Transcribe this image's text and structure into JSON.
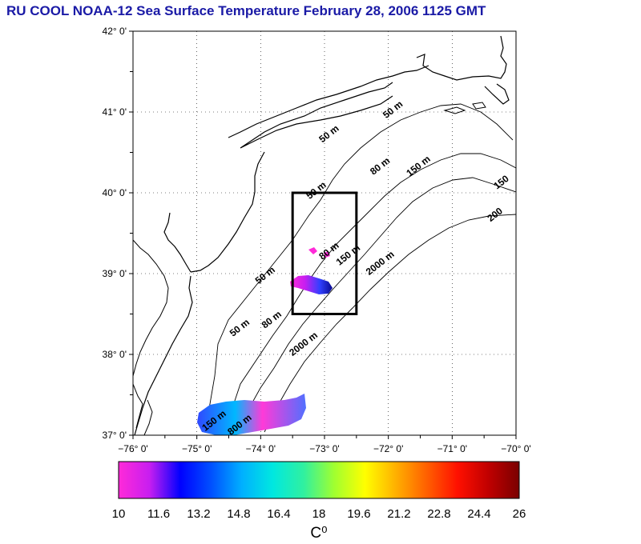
{
  "title": "RU COOL  NOAA-12 Sea Surface Temperature February 28, 2006 1125 GMT",
  "map": {
    "lon_range": [
      -76,
      -70
    ],
    "lat_range": [
      37,
      42
    ],
    "lon_ticks": [
      {
        "value": -76,
        "label": "−76° 0'"
      },
      {
        "value": -75,
        "label": "−75° 0'"
      },
      {
        "value": -74,
        "label": "−74° 0'"
      },
      {
        "value": -73,
        "label": "−73° 0'"
      },
      {
        "value": -72,
        "label": "−72° 0'"
      },
      {
        "value": -71,
        "label": "−71° 0'"
      },
      {
        "value": -70,
        "label": "−70° 0'"
      }
    ],
    "lat_ticks": [
      {
        "value": 42,
        "label": "42° 0'"
      },
      {
        "value": 41,
        "label": "41° 0'"
      },
      {
        "value": 40,
        "label": "40° 0'"
      },
      {
        "value": 39,
        "label": "39° 0'"
      },
      {
        "value": 38,
        "label": "38° 0'"
      },
      {
        "value": 37,
        "label": "37° 0'"
      }
    ],
    "study_box": {
      "lon_min": -73.5,
      "lon_max": -72.5,
      "lat_min": 38.5,
      "lat_max": 40.0
    },
    "contour_labels": [
      {
        "text": "50 m",
        "lon": -72.9,
        "lat": 40.7
      },
      {
        "text": "50 m",
        "lon": -71.9,
        "lat": 41.0
      },
      {
        "text": "80 m",
        "lon": -72.1,
        "lat": 40.3
      },
      {
        "text": "150 m",
        "lon": -71.5,
        "lat": 40.3
      },
      {
        "text": "150",
        "lon": -70.2,
        "lat": 40.1
      },
      {
        "text": "200",
        "lon": -70.3,
        "lat": 39.7
      },
      {
        "text": "50 m",
        "lon": -73.1,
        "lat": 40.0
      },
      {
        "text": "80 m",
        "lon": -72.9,
        "lat": 39.25
      },
      {
        "text": "150 m",
        "lon": -72.6,
        "lat": 39.2
      },
      {
        "text": "2000 m",
        "lon": -72.1,
        "lat": 39.1
      },
      {
        "text": "50 m",
        "lon": -73.9,
        "lat": 38.95
      },
      {
        "text": "50 m",
        "lon": -74.3,
        "lat": 38.3
      },
      {
        "text": "80 m",
        "lon": -73.8,
        "lat": 38.4
      },
      {
        "text": "2000 m",
        "lon": -73.3,
        "lat": 38.1
      },
      {
        "text": "150 m",
        "lon": -74.7,
        "lat": 37.15
      },
      {
        "text": "800 m",
        "lon": -74.3,
        "lat": 37.1
      }
    ]
  },
  "colorbar": {
    "min": 10,
    "max": 26,
    "tick_labels": [
      "10",
      "11.6",
      "13.2",
      "14.8",
      "16.4",
      "18",
      "19.6",
      "21.2",
      "22.8",
      "24.4",
      "26"
    ],
    "unit": "C⁰",
    "colors": [
      "#ff2ad8",
      "#c81ef0",
      "#0000ff",
      "#0050ff",
      "#00b0ff",
      "#00e8e0",
      "#30f0a0",
      "#a0ff30",
      "#ffff00",
      "#ffb000",
      "#ff6000",
      "#ff1000",
      "#c00000",
      "#7a0000"
    ]
  }
}
